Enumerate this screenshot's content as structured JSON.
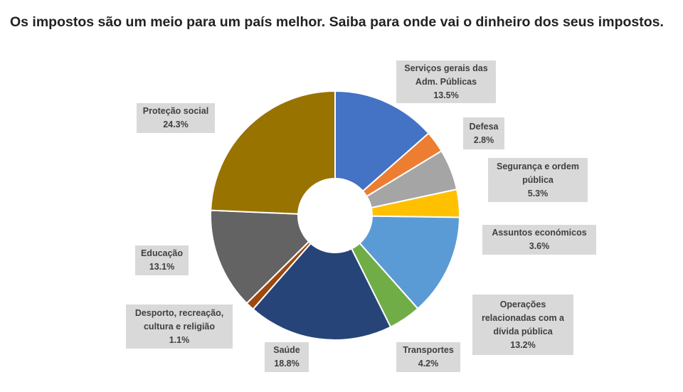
{
  "title": "Os impostos são um meio para um país melhor. Saiba para onde vai o dinheiro dos seus impostos.",
  "chart_data": {
    "type": "pie",
    "variant": "donut",
    "title": "",
    "unit": "%",
    "legend": "none",
    "slices": [
      {
        "label": "Serviços gerais das Adm. Públicas",
        "value": 13.5,
        "display": "13.5%",
        "color": "#4472C4"
      },
      {
        "label": "Defesa",
        "value": 2.8,
        "display": "2.8%",
        "color": "#ED7D31"
      },
      {
        "label": "Segurança e ordem pública",
        "value": 5.3,
        "display": "5.3%",
        "color": "#A5A5A5"
      },
      {
        "label": "Assuntos económicos",
        "value": 3.6,
        "display": "3.6%",
        "color": "#FFC000"
      },
      {
        "label": "Operações relacionadas com a dívida pública",
        "value": 13.2,
        "display": "13.2%",
        "color": "#5B9BD5"
      },
      {
        "label": "Transportes",
        "value": 4.2,
        "display": "4.2%",
        "color": "#70AD47"
      },
      {
        "label": "Saúde",
        "value": 18.8,
        "display": "18.8%",
        "color": "#264478"
      },
      {
        "label": "Desporto, recreação, cultura e religião",
        "value": 1.1,
        "display": "1.1%",
        "color": "#9E480E"
      },
      {
        "label": "Educação",
        "value": 13.1,
        "display": "13.1%",
        "color": "#636363"
      },
      {
        "label": "Proteção social",
        "value": 24.3,
        "display": "24.3%",
        "color": "#997300"
      }
    ]
  }
}
